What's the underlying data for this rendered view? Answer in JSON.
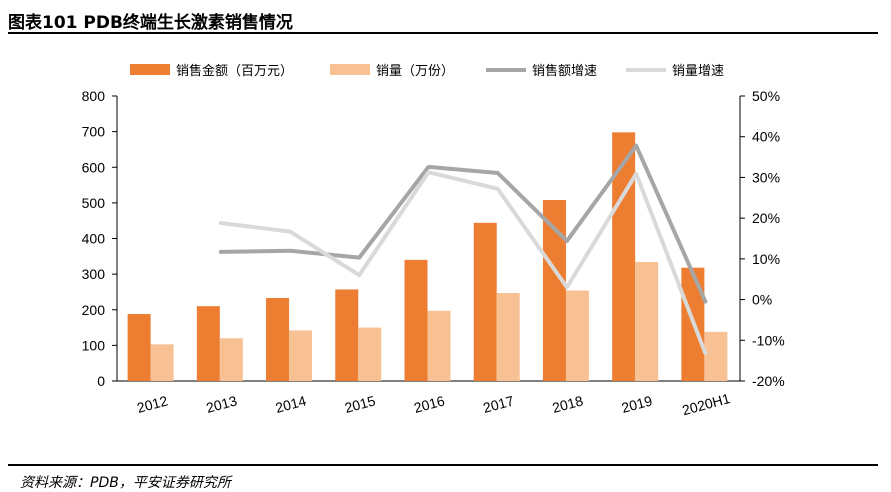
{
  "title": "图表101 PDB终端生长激素销售情况",
  "source": "资料来源：PDB，平安证券研究所",
  "chart_data": {
    "type": "bar",
    "categories": [
      "2012",
      "2013",
      "2014",
      "2015",
      "2016",
      "2017",
      "2018",
      "2019",
      "2020H1"
    ],
    "series": [
      {
        "name": "销售金额（百万元）",
        "kind": "bar",
        "axis": "left",
        "color": "#ED7D31",
        "values": [
          188,
          210,
          233,
          257,
          340,
          444,
          508,
          698,
          318
        ]
      },
      {
        "name": "销量（万份）",
        "kind": "bar",
        "axis": "left",
        "color": "#F8C193",
        "values": [
          103,
          120,
          142,
          150,
          197,
          247,
          254,
          334,
          138
        ]
      },
      {
        "name": "销售额增速",
        "kind": "line",
        "axis": "right",
        "color": "#A6A6A6",
        "values": [
          null,
          11.7,
          12.0,
          10.3,
          32.6,
          31.1,
          14.4,
          37.8,
          -0.5
        ]
      },
      {
        "name": "销量增速",
        "kind": "line",
        "axis": "right",
        "color": "#D9D9D9",
        "values": [
          null,
          18.8,
          16.7,
          6.0,
          31.3,
          27.2,
          3.0,
          30.9,
          -13.2
        ]
      }
    ],
    "y_left": {
      "min": 0,
      "max": 800,
      "ticks": [
        0,
        100,
        200,
        300,
        400,
        500,
        600,
        700,
        800
      ]
    },
    "y_right": {
      "min": -20,
      "max": 50,
      "ticks": [
        "-20%",
        "-10%",
        "0%",
        "10%",
        "20%",
        "30%",
        "40%",
        "50%"
      ]
    },
    "legend_position": "top",
    "grid": false
  }
}
